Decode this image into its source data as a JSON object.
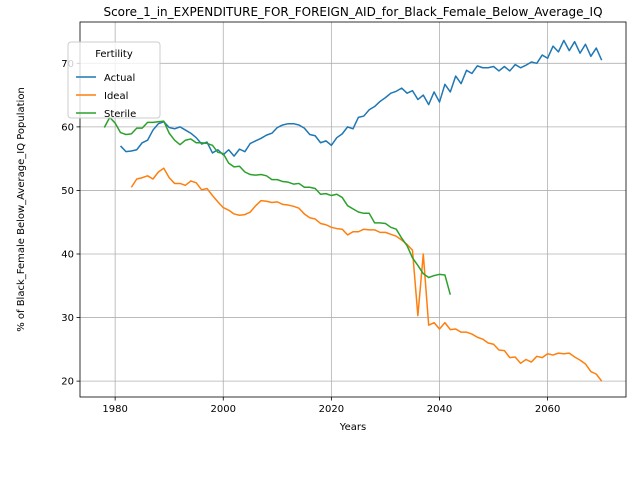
{
  "chart_data": {
    "type": "line",
    "title": "Score_1_in_EXPENDITURE_FOR_FOREIGN_AID_for_Black_Female_Below_Average_IQ",
    "xlabel": "Years",
    "ylabel": "% of Black_Female Below_Average_IQ Population",
    "xlim": [
      1973.5,
      2074.5
    ],
    "ylim": [
      17.5,
      76.5
    ],
    "xticks": [
      1980,
      2000,
      2020,
      2040,
      2060
    ],
    "yticks": [
      20,
      30,
      40,
      50,
      60,
      70
    ],
    "grid": true,
    "legend": {
      "title": "Fertility",
      "placement": "top-left"
    },
    "series": [
      {
        "name": "Actual",
        "color": "#1f77b4",
        "x": [
          1981,
          1982,
          1983,
          1984,
          1985,
          1986,
          1987,
          1988,
          1989,
          1990,
          1991,
          1992,
          1993,
          1994,
          1995,
          1996,
          1997,
          1998,
          1999,
          2000,
          2001,
          2002,
          2003,
          2004,
          2005,
          2006,
          2007,
          2008,
          2009,
          2010,
          2011,
          2012,
          2013,
          2014,
          2015,
          2016,
          2017,
          2018,
          2019,
          2020,
          2021,
          2022,
          2023,
          2024,
          2025,
          2026,
          2027,
          2028,
          2029,
          2030,
          2031,
          2032,
          2033,
          2034,
          2035,
          2036,
          2037,
          2038,
          2039,
          2040,
          2041,
          2042,
          2043,
          2044,
          2045,
          2046,
          2047,
          2048,
          2049,
          2050,
          2051,
          2052,
          2053,
          2054,
          2055,
          2056,
          2057,
          2058,
          2059,
          2060,
          2061,
          2062,
          2063,
          2064,
          2065,
          2066,
          2067,
          2068,
          2069,
          2070
        ],
        "y": [
          57.0,
          56.1,
          56.2,
          56.4,
          57.5,
          57.9,
          59.5,
          60.5,
          60.8,
          59.9,
          59.7,
          60.0,
          59.5,
          59.0,
          58.3,
          57.3,
          57.6,
          55.9,
          56.4,
          55.6,
          56.4,
          55.4,
          56.5,
          56.1,
          57.4,
          57.8,
          58.2,
          58.7,
          59.0,
          59.9,
          60.3,
          60.5,
          60.5,
          60.3,
          59.8,
          58.8,
          58.6,
          57.5,
          57.8,
          57.1,
          58.3,
          58.9,
          60.0,
          59.7,
          61.5,
          61.7,
          62.7,
          63.2,
          64.0,
          64.6,
          65.3,
          65.6,
          66.1,
          65.3,
          65.7,
          64.3,
          65.0,
          63.5,
          65.5,
          63.9,
          66.7,
          65.5,
          68.0,
          66.8,
          68.9,
          68.4,
          69.6,
          69.3,
          69.3,
          69.5,
          68.8,
          69.5,
          68.8,
          69.8,
          69.3,
          69.7,
          70.2,
          70.0,
          71.3,
          70.8,
          72.7,
          71.8,
          73.6,
          72.0,
          73.4,
          71.6,
          73.0,
          71.1,
          72.4,
          70.5
        ]
      },
      {
        "name": "Ideal",
        "color": "#ff7f0e",
        "x": [
          1983,
          1984,
          1985,
          1986,
          1987,
          1988,
          1989,
          1990,
          1991,
          1992,
          1993,
          1994,
          1995,
          1996,
          1997,
          1998,
          1999,
          2000,
          2001,
          2002,
          2003,
          2004,
          2005,
          2006,
          2007,
          2008,
          2009,
          2010,
          2011,
          2012,
          2013,
          2014,
          2015,
          2016,
          2017,
          2018,
          2019,
          2020,
          2021,
          2022,
          2023,
          2024,
          2025,
          2026,
          2027,
          2028,
          2029,
          2030,
          2031,
          2032,
          2033,
          2034,
          2035,
          2036,
          2037,
          2038,
          2039,
          2040,
          2041,
          2042,
          2043,
          2044,
          2045,
          2046,
          2047,
          2048,
          2049,
          2050,
          2051,
          2052,
          2053,
          2054,
          2055,
          2056,
          2057,
          2058,
          2059,
          2060,
          2061,
          2062,
          2063,
          2064,
          2065,
          2066,
          2067,
          2068,
          2069,
          2070
        ],
        "y": [
          50.5,
          51.8,
          52.0,
          52.3,
          51.8,
          52.9,
          53.5,
          52.0,
          51.1,
          51.1,
          50.8,
          51.5,
          51.2,
          50.1,
          50.3,
          49.2,
          48.2,
          47.3,
          46.9,
          46.3,
          46.1,
          46.2,
          46.6,
          47.6,
          48.4,
          48.3,
          48.1,
          48.2,
          47.8,
          47.7,
          47.5,
          47.2,
          46.3,
          45.7,
          45.5,
          44.8,
          44.6,
          44.2,
          44.0,
          43.9,
          43.0,
          43.5,
          43.5,
          43.9,
          43.8,
          43.8,
          43.4,
          43.4,
          43.1,
          42.8,
          42.2,
          41.5,
          40.6,
          30.3,
          40.0,
          28.8,
          29.2,
          28.2,
          29.2,
          28.1,
          28.2,
          27.7,
          27.7,
          27.4,
          26.9,
          26.6,
          26.0,
          25.8,
          24.9,
          24.8,
          23.7,
          23.8,
          22.8,
          23.4,
          23.0,
          23.9,
          23.7,
          24.3,
          24.1,
          24.4,
          24.3,
          24.4,
          23.8,
          23.3,
          22.7,
          21.5,
          21.1,
          20.0
        ]
      },
      {
        "name": "Sterile",
        "color": "#2ca02c",
        "x": [
          1978,
          1979,
          1980,
          1981,
          1982,
          1983,
          1984,
          1985,
          1986,
          1987,
          1988,
          1989,
          1990,
          1991,
          1992,
          1993,
          1994,
          1995,
          1996,
          1997,
          1998,
          1999,
          2000,
          2001,
          2002,
          2003,
          2004,
          2005,
          2006,
          2007,
          2008,
          2009,
          2010,
          2011,
          2012,
          2013,
          2014,
          2015,
          2016,
          2017,
          2018,
          2019,
          2020,
          2021,
          2022,
          2023,
          2024,
          2025,
          2026,
          2027,
          2028,
          2029,
          2030,
          2031,
          2032,
          2033,
          2034,
          2035,
          2036,
          2037,
          2038,
          2039,
          2040,
          2041,
          2042
        ],
        "y": [
          59.9,
          61.5,
          60.6,
          59.1,
          58.8,
          58.9,
          59.8,
          59.8,
          60.7,
          60.7,
          60.8,
          60.9,
          59.0,
          57.9,
          57.2,
          57.9,
          58.1,
          57.5,
          57.5,
          57.4,
          57.1,
          56.0,
          55.8,
          54.3,
          53.7,
          53.8,
          52.9,
          52.5,
          52.4,
          52.5,
          52.3,
          51.7,
          51.7,
          51.4,
          51.3,
          51.0,
          51.1,
          50.5,
          50.5,
          50.3,
          49.4,
          49.5,
          49.2,
          49.4,
          48.9,
          47.6,
          47.1,
          46.6,
          46.4,
          46.4,
          44.9,
          44.9,
          44.8,
          44.2,
          43.9,
          42.5,
          41.3,
          39.4,
          38.2,
          36.9,
          36.3,
          36.6,
          36.8,
          36.7,
          33.6
        ]
      }
    ]
  }
}
